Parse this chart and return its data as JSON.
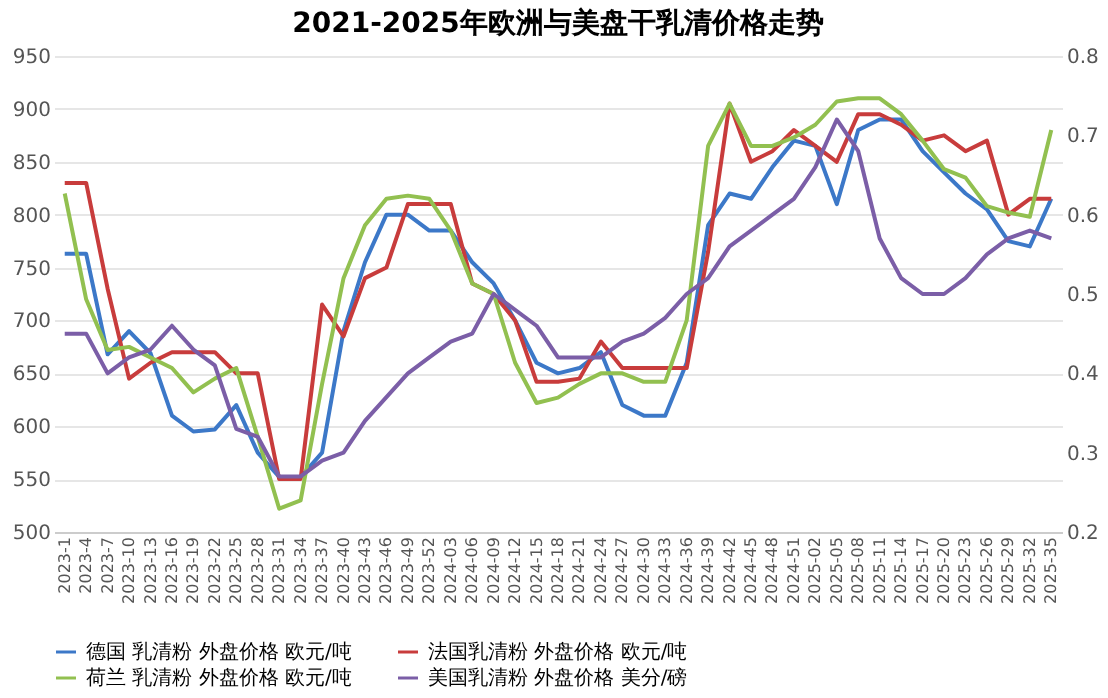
{
  "chart_data": {
    "type": "line",
    "title": "2021-2025年欧洲与美盘干乳清价格走势",
    "categories": [
      "2023-1",
      "2023-4",
      "2023-7",
      "2023-10",
      "2023-13",
      "2023-16",
      "2023-19",
      "2023-22",
      "2023-25",
      "2023-28",
      "2023-31",
      "2023-34",
      "2023-37",
      "2023-40",
      "2023-43",
      "2023-46",
      "2023-49",
      "2023-52",
      "2024-03",
      "2024-06",
      "2024-09",
      "2024-12",
      "2024-15",
      "2024-18",
      "2024-21",
      "2024-24",
      "2024-27",
      "2024-30",
      "2024-33",
      "2024-36",
      "2024-39",
      "2024-42",
      "2024-45",
      "2024-48",
      "2024-51",
      "2025-02",
      "2025-05",
      "2025-08",
      "2025-11",
      "2025-14",
      "2025-17",
      "2025-20",
      "2025-23",
      "2025-26",
      "2025-29",
      "2025-32",
      "2025-35"
    ],
    "series": [
      {
        "name": "德国 乳清粉 外盘价格 欧元/吨",
        "color": "#3c78c8",
        "values": [
          763,
          763,
          668,
          690,
          669,
          610,
          595,
          597,
          620,
          575,
          552,
          552,
          575,
          690,
          755,
          800,
          800,
          785,
          785,
          755,
          735,
          700,
          660,
          650,
          655,
          670,
          620,
          610,
          610,
          660,
          790,
          820,
          815,
          845,
          870,
          865,
          810,
          880,
          890,
          890,
          860,
          840,
          820,
          805,
          775,
          770,
          815
        ]
      },
      {
        "name": "法国乳清粉 外盘价格 欧元/吨",
        "color": "#c83c3c",
        "values": [
          830,
          830,
          730,
          645,
          660,
          670,
          670,
          670,
          650,
          650,
          550,
          550,
          715,
          685,
          740,
          750,
          810,
          810,
          810,
          735,
          725,
          700,
          642,
          642,
          645,
          680,
          655,
          655,
          655,
          655,
          765,
          905,
          850,
          860,
          880,
          865,
          850,
          895,
          895,
          885,
          870,
          875,
          860,
          870,
          800,
          815,
          815
        ]
      },
      {
        "name": "荷兰 乳清粉 外盘价格 欧元/吨",
        "color": "#92c050",
        "values": [
          820,
          720,
          672,
          675,
          665,
          655,
          632,
          645,
          655,
          590,
          522,
          530,
          640,
          740,
          790,
          815,
          818,
          815,
          785,
          735,
          725,
          660,
          622,
          627,
          640,
          650,
          650,
          642,
          642,
          700,
          865,
          905,
          865,
          865,
          873,
          885,
          907,
          910,
          910,
          895,
          870,
          843,
          835,
          808,
          802,
          798,
          880
        ]
      },
      {
        "name": "美国乳清粉 外盘价格 美分/磅",
        "color": "#7b5ea7",
        "axis": "y2",
        "values": [
          0.45,
          0.45,
          0.4,
          0.42,
          0.43,
          0.46,
          0.43,
          0.41,
          0.33,
          0.32,
          0.27,
          0.27,
          0.29,
          0.3,
          0.34,
          0.37,
          0.4,
          0.42,
          0.44,
          0.45,
          0.5,
          0.48,
          0.46,
          0.42,
          0.42,
          0.42,
          0.44,
          0.45,
          0.47,
          0.5,
          0.52,
          0.56,
          0.58,
          0.6,
          0.62,
          0.66,
          0.72,
          0.68,
          0.57,
          0.52,
          0.5,
          0.5,
          0.52,
          0.55,
          0.57,
          0.58,
          0.57
        ]
      }
    ],
    "ylim": [
      500,
      950
    ],
    "yticks": [
      500,
      550,
      600,
      650,
      700,
      750,
      800,
      850,
      900,
      950
    ],
    "y2lim": [
      0.2,
      0.8
    ],
    "y2ticks": [
      0.2,
      0.3,
      0.4,
      0.5,
      0.6,
      0.7,
      0.8
    ],
    "grid": "y",
    "legend": "bottom",
    "marker": "none",
    "line_style": "solid"
  }
}
